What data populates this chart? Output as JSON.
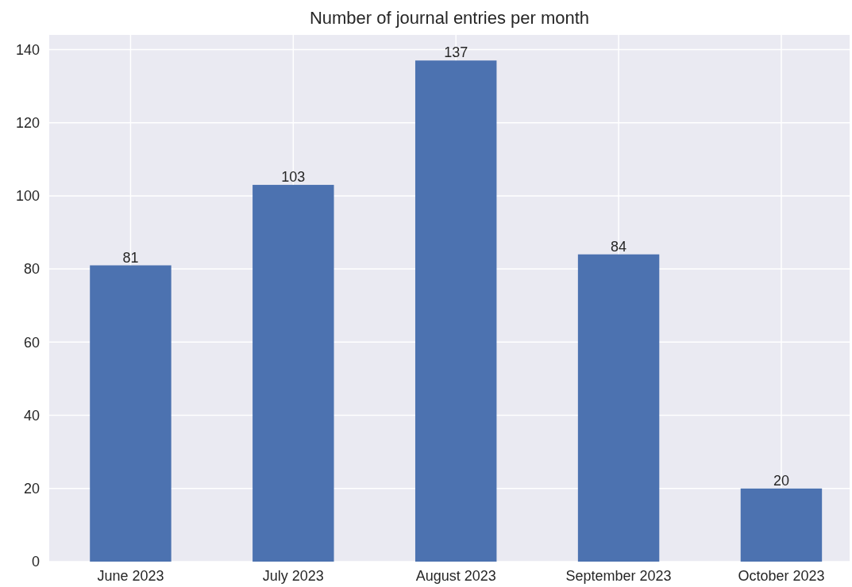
{
  "chart_data": {
    "type": "bar",
    "title": "Number of journal entries per month",
    "categories": [
      "June 2023",
      "July 2023",
      "August 2023",
      "September 2023",
      "October 2023"
    ],
    "values": [
      81,
      103,
      137,
      84,
      20
    ],
    "color": "#4c72b0",
    "ylim": [
      0,
      144
    ],
    "yticks": [
      0,
      20,
      40,
      60,
      80,
      100,
      120,
      140
    ],
    "grid": true,
    "data_labels": true
  }
}
